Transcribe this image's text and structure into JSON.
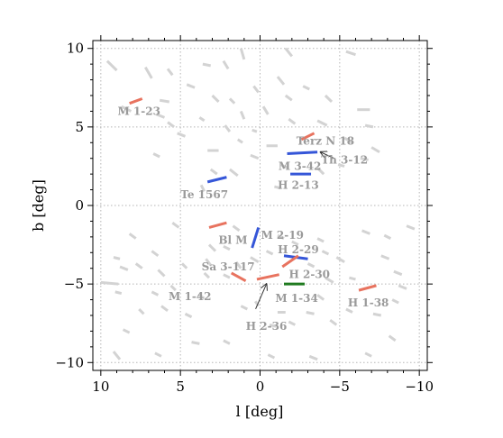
{
  "chart_data": {
    "type": "scatter",
    "xlabel": "l [deg]",
    "ylabel": "b [deg]",
    "xlim": [
      10.5,
      -10.5
    ],
    "ylim": [
      -10.5,
      10.5
    ],
    "xticks": [
      10,
      5,
      0,
      -5,
      -10
    ],
    "yticks": [
      10,
      5,
      0,
      -5,
      -10
    ],
    "xtick_labels": [
      "10",
      "5",
      "0",
      "−5",
      "−10"
    ],
    "ytick_labels": [
      "10",
      "5",
      "0",
      "−5",
      "−10"
    ],
    "grid": true,
    "colors": {
      "background_segments": "#d3d3d3",
      "red": "#e8735f",
      "blue": "#3556d8",
      "green": "#1f7a1f",
      "annotation_text": "#9a9a9a"
    },
    "gray_segments": [
      [
        9.6,
        9.2,
        9.0,
        8.6
      ],
      [
        7.2,
        8.8,
        6.8,
        8.1
      ],
      [
        5.8,
        8.7,
        5.5,
        8.3
      ],
      [
        8.7,
        6.3,
        8.1,
        6.0
      ],
      [
        6.3,
        6.7,
        5.7,
        6.6
      ],
      [
        6.5,
        5.8,
        6.0,
        5.6
      ],
      [
        3.6,
        9.0,
        3.1,
        8.9
      ],
      [
        2.3,
        9.2,
        2.0,
        8.7
      ],
      [
        1.2,
        10.0,
        1.0,
        9.3
      ],
      [
        -1.6,
        10.0,
        -2.0,
        9.5
      ],
      [
        -5.4,
        9.8,
        -6.0,
        9.6
      ],
      [
        4.6,
        7.7,
        4.1,
        7.5
      ],
      [
        5.8,
        5.3,
        5.4,
        5.0
      ],
      [
        3.0,
        7.0,
        2.6,
        6.6
      ],
      [
        1.9,
        6.8,
        1.6,
        6.5
      ],
      [
        0.4,
        7.6,
        0.1,
        7.2
      ],
      [
        -1.1,
        8.2,
        -1.5,
        7.7
      ],
      [
        -1.6,
        7.0,
        -2.0,
        6.7
      ],
      [
        -2.7,
        7.6,
        -3.1,
        7.4
      ],
      [
        -4.1,
        7.0,
        -4.5,
        6.6
      ],
      [
        -6.1,
        6.1,
        -6.9,
        6.1
      ],
      [
        -6.6,
        5.1,
        -7.1,
        5.0
      ],
      [
        -3.6,
        5.4,
        -4.2,
        5.1
      ],
      [
        -1.8,
        5.5,
        -2.2,
        5.2
      ],
      [
        -0.2,
        6.3,
        -0.5,
        5.8
      ],
      [
        1.2,
        6.0,
        1.0,
        5.5
      ],
      [
        2.2,
        5.1,
        1.9,
        4.7
      ],
      [
        3.8,
        5.6,
        3.5,
        5.4
      ],
      [
        5.2,
        4.6,
        4.7,
        4.4
      ],
      [
        6.7,
        3.3,
        6.3,
        3.1
      ],
      [
        3.3,
        3.5,
        2.6,
        3.5
      ],
      [
        3.1,
        2.3,
        2.7,
        2.0
      ],
      [
        1.9,
        2.3,
        1.4,
        1.9
      ],
      [
        0.6,
        3.2,
        0.1,
        3.0
      ],
      [
        -0.4,
        3.8,
        -1.1,
        3.8
      ],
      [
        -1.3,
        2.6,
        -1.7,
        2.4
      ],
      [
        -3.6,
        2.4,
        -4.0,
        2.0
      ],
      [
        -4.9,
        2.6,
        -5.3,
        2.5
      ],
      [
        -5.3,
        4.3,
        -5.8,
        4.0
      ],
      [
        -6.3,
        3.0,
        -6.8,
        2.9
      ],
      [
        -7.0,
        3.7,
        -7.5,
        3.4
      ],
      [
        0.5,
        4.8,
        0.2,
        4.7
      ],
      [
        1.4,
        4.2,
        1.1,
        4.0
      ],
      [
        3.7,
        1.3,
        3.5,
        0.9
      ],
      [
        -0.9,
        1.2,
        -1.3,
        1.1
      ],
      [
        8.8,
        -3.9,
        8.3,
        -4.1
      ],
      [
        10.0,
        -4.9,
        8.9,
        -5.0
      ],
      [
        9.1,
        -5.5,
        8.7,
        -5.6
      ],
      [
        7.8,
        -3.7,
        7.4,
        -4.0
      ],
      [
        9.2,
        -3.3,
        8.8,
        -3.4
      ],
      [
        8.2,
        -1.8,
        7.8,
        -2.1
      ],
      [
        5.5,
        -1.1,
        5.1,
        -1.4
      ],
      [
        6.8,
        -2.9,
        6.4,
        -3.2
      ],
      [
        4.9,
        -3.7,
        4.6,
        -4.0
      ],
      [
        6.4,
        -4.1,
        6.0,
        -4.5
      ],
      [
        5.6,
        -5.1,
        5.3,
        -5.4
      ],
      [
        6.8,
        -5.5,
        6.4,
        -5.7
      ],
      [
        7.6,
        -6.6,
        7.3,
        -6.9
      ],
      [
        6.2,
        -6.4,
        5.8,
        -6.7
      ],
      [
        4.7,
        -6.9,
        4.3,
        -7.1
      ],
      [
        3.9,
        -5.7,
        3.5,
        -5.9
      ],
      [
        3.5,
        -4.3,
        3.2,
        -4.6
      ],
      [
        3.4,
        -3.4,
        3.1,
        -3.8
      ],
      [
        3.2,
        -2.5,
        2.8,
        -2.9
      ],
      [
        2.3,
        -2.6,
        1.9,
        -2.8
      ],
      [
        1.7,
        -1.3,
        1.3,
        -1.6
      ],
      [
        1.5,
        -3.6,
        1.2,
        -4.0
      ],
      [
        2.3,
        -4.4,
        1.9,
        -4.6
      ],
      [
        1.2,
        -6.4,
        0.8,
        -6.6
      ],
      [
        0.3,
        -6.1,
        0.1,
        -6.4
      ],
      [
        -0.6,
        -7.6,
        -1.0,
        -7.7
      ],
      [
        -1.1,
        -6.8,
        -1.6,
        -6.8
      ],
      [
        -1.8,
        -7.4,
        -2.2,
        -7.6
      ],
      [
        -2.9,
        -6.8,
        -3.4,
        -6.9
      ],
      [
        -3.6,
        -5.7,
        -4.0,
        -6.0
      ],
      [
        -4.4,
        -7.3,
        -4.8,
        -7.6
      ],
      [
        -5.4,
        -6.6,
        -5.8,
        -6.8
      ],
      [
        -7.1,
        -6.9,
        -7.6,
        -7.0
      ],
      [
        -8.3,
        -6.0,
        -8.7,
        -6.2
      ],
      [
        -8.7,
        -5.1,
        -9.2,
        -5.3
      ],
      [
        -8.4,
        -4.2,
        -8.9,
        -4.4
      ],
      [
        -7.6,
        -3.2,
        -8.1,
        -3.4
      ],
      [
        -5.6,
        -4.6,
        -6.0,
        -4.7
      ],
      [
        -4.1,
        -4.6,
        -4.6,
        -4.9
      ],
      [
        -4.8,
        -3.3,
        -5.3,
        -3.6
      ],
      [
        -3.9,
        -2.9,
        -4.3,
        -3.1
      ],
      [
        -3.0,
        -3.7,
        -3.4,
        -3.9
      ],
      [
        -3.6,
        -2.1,
        -4.0,
        -2.3
      ],
      [
        -2.0,
        -2.3,
        -2.4,
        -2.5
      ],
      [
        -1.1,
        -1.9,
        -1.5,
        -2.1
      ],
      [
        -0.4,
        -2.9,
        -0.8,
        -3.1
      ],
      [
        0.6,
        -3.3,
        0.1,
        -3.6
      ],
      [
        -6.4,
        -1.6,
        -6.9,
        -1.8
      ],
      [
        -7.8,
        -1.9,
        -8.2,
        -2.1
      ],
      [
        -9.2,
        -1.3,
        -9.7,
        -1.5
      ],
      [
        -8.1,
        -8.3,
        -8.5,
        -8.6
      ],
      [
        -6.6,
        -9.4,
        -7.0,
        -9.6
      ],
      [
        -3.1,
        -9.6,
        -3.6,
        -9.8
      ],
      [
        -0.5,
        -9.5,
        -0.9,
        -9.7
      ],
      [
        2.3,
        -8.6,
        1.9,
        -8.8
      ],
      [
        4.3,
        -8.7,
        3.8,
        -8.8
      ],
      [
        6.6,
        -9.4,
        6.2,
        -9.6
      ],
      [
        9.2,
        -9.3,
        8.8,
        -9.8
      ],
      [
        8.6,
        -7.9,
        8.2,
        -8.1
      ]
    ],
    "colored_segments": [
      {
        "color": "red",
        "points": [
          7.4,
          6.8,
          8.2,
          6.5
        ]
      },
      {
        "color": "red",
        "points": [
          -2.6,
          4.2,
          -3.4,
          4.6
        ]
      },
      {
        "color": "blue",
        "points": [
          -1.7,
          3.3,
          -3.6,
          3.4
        ]
      },
      {
        "color": "blue",
        "points": [
          -1.9,
          2.0,
          -3.2,
          2.0
        ]
      },
      {
        "color": "blue",
        "points": [
          2.1,
          1.8,
          3.3,
          1.5
        ]
      },
      {
        "color": "red",
        "points": [
          2.1,
          -1.1,
          3.2,
          -1.4
        ]
      },
      {
        "color": "blue",
        "points": [
          0.1,
          -1.4,
          0.5,
          -2.7
        ]
      },
      {
        "color": "blue",
        "points": [
          -1.5,
          -3.2,
          -3.0,
          -3.4
        ]
      },
      {
        "color": "red",
        "points": [
          -1.4,
          -3.9,
          -2.4,
          -3.2
        ]
      },
      {
        "color": "red",
        "points": [
          0.2,
          -4.7,
          -1.2,
          -4.4
        ]
      },
      {
        "color": "red",
        "points": [
          0.9,
          -4.8,
          1.8,
          -4.3
        ]
      },
      {
        "color": "green",
        "points": [
          -1.5,
          -5.0,
          -2.8,
          -5.0
        ]
      },
      {
        "color": "red",
        "points": [
          -6.2,
          -5.4,
          -7.3,
          -5.1
        ]
      }
    ],
    "annotations": [
      {
        "text": "M 1-23",
        "x": 7.6,
        "y": 6.0
      },
      {
        "text": "Terz N 18",
        "x": -4.1,
        "y": 4.1
      },
      {
        "text": "M 3-42",
        "x": -2.5,
        "y": 2.5
      },
      {
        "text": "Th 3-12",
        "x": -5.3,
        "y": 2.9
      },
      {
        "text": "H 2-13",
        "x": -2.4,
        "y": 1.3
      },
      {
        "text": "Te 1567",
        "x": 3.5,
        "y": 0.7
      },
      {
        "text": "Bl M",
        "x": 1.7,
        "y": -2.2
      },
      {
        "text": "M 2-19",
        "x": -1.4,
        "y": -1.9
      },
      {
        "text": "H 2-29",
        "x": -2.4,
        "y": -2.8
      },
      {
        "text": "Sa 3-117",
        "x": 2.0,
        "y": -3.9
      },
      {
        "text": "H 2-30",
        "x": -3.1,
        "y": -4.4
      },
      {
        "text": "M 1-42",
        "x": 4.4,
        "y": -5.8
      },
      {
        "text": "M 1-34",
        "x": -2.3,
        "y": -5.9
      },
      {
        "text": "H 1-38",
        "x": -6.8,
        "y": -6.2
      },
      {
        "text": "H 2-36",
        "x": -0.4,
        "y": -7.7
      }
    ],
    "arrows": [
      {
        "from": [
          -5.3,
          2.9
        ],
        "to": [
          -3.8,
          3.4
        ],
        "label": "Th 3-12"
      },
      {
        "from": [
          -0.4,
          -6.7
        ],
        "to": [
          -0.4,
          -5.0
        ],
        "label": "H 2-36"
      }
    ]
  }
}
